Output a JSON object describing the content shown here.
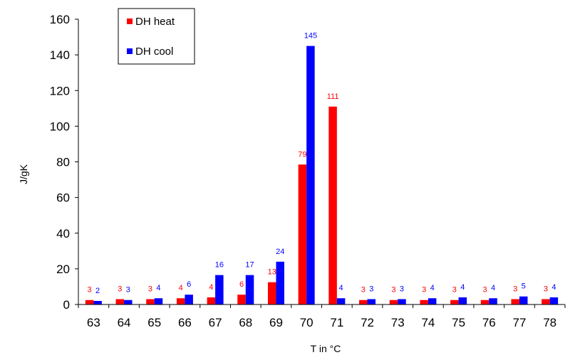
{
  "chart_data": {
    "type": "bar",
    "title": "",
    "xlabel": "T in °C",
    "ylabel": "J/gK",
    "ylim": [
      0,
      160
    ],
    "yticks": [
      0,
      20,
      40,
      60,
      80,
      100,
      120,
      140,
      160
    ],
    "grid": false,
    "legend_position": "top-left",
    "categories": [
      "63",
      "64",
      "65",
      "66",
      "67",
      "68",
      "69",
      "70",
      "71",
      "72",
      "73",
      "74",
      "75",
      "76",
      "77",
      "78"
    ],
    "series": [
      {
        "name": "DH heat",
        "color": "#ff0000",
        "values": [
          2.5,
          3,
          3,
          3.5,
          4,
          5.5,
          12.5,
          78.5,
          111,
          2.5,
          2.5,
          2.5,
          2.5,
          2.5,
          3,
          3
        ],
        "labels": [
          "3",
          "3",
          "3",
          "4",
          "4",
          "6",
          "13",
          "79",
          "111",
          "3",
          "3",
          "3",
          "3",
          "3",
          "3",
          "3"
        ]
      },
      {
        "name": "DH cool",
        "color": "#0000ff",
        "values": [
          2,
          2.5,
          3.5,
          5.5,
          16.5,
          16.5,
          24,
          145,
          3.5,
          3,
          3,
          3.5,
          4,
          3.5,
          4.5,
          4
        ],
        "labels": [
          "2",
          "3",
          "4",
          "6",
          "16",
          "17",
          "24",
          "145",
          "4",
          "3",
          "3",
          "4",
          "4",
          "4",
          "5",
          "4"
        ]
      }
    ]
  }
}
